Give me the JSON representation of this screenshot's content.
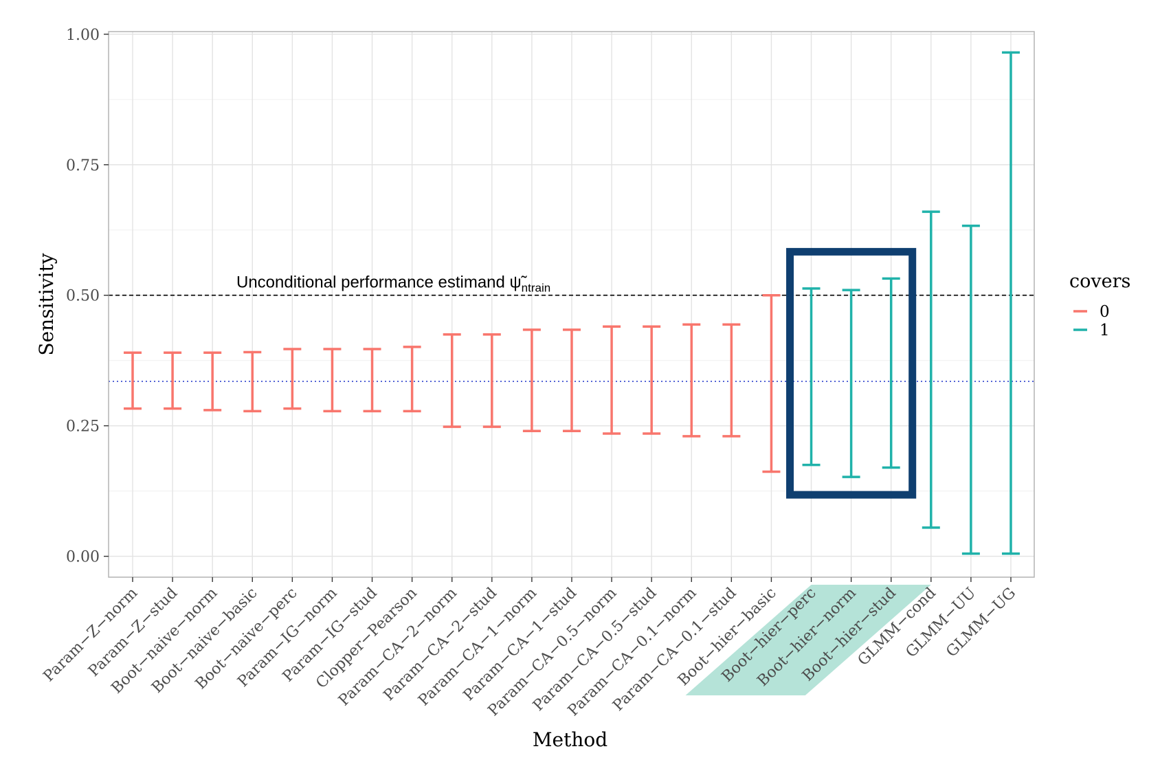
{
  "chart_data": {
    "type": "errorbar",
    "xlabel": "Method",
    "ylabel": "Sensitivity",
    "ylim": [
      -0.04,
      1.005
    ],
    "yticks": [
      0.0,
      0.25,
      0.5,
      0.75,
      1.0
    ],
    "ytick_labels": [
      "0.00",
      "0.25",
      "0.50",
      "0.75",
      "1.00"
    ],
    "grid": true,
    "legend": {
      "title": "covers",
      "position": "right",
      "entries": [
        {
          "label": "0",
          "color": "#F8766D"
        },
        {
          "label": "1",
          "color": "#20B2AA"
        }
      ]
    },
    "categories": [
      "Param−Z−norm",
      "Param−Z−stud",
      "Boot−naive−norm",
      "Boot−naive−basic",
      "Boot−naive−perc",
      "Param−IG−norm",
      "Param−IG−stud",
      "Clopper−Pearson",
      "Param−CA−2−norm",
      "Param−CA−2−stud",
      "Param−CA−1−norm",
      "Param−CA−1−stud",
      "Param−CA−0.5−norm",
      "Param−CA−0.5−stud",
      "Param−CA−0.1−norm",
      "Param−CA−0.1−stud",
      "Boot−hier−basic",
      "Boot−hier−perc",
      "Boot−hier−norm",
      "Boot−hier−stud",
      "GLMM−cond",
      "GLMM−UU",
      "GLMM−UG"
    ],
    "lower": [
      0.283,
      0.283,
      0.28,
      0.278,
      0.283,
      0.278,
      0.278,
      0.278,
      0.248,
      0.248,
      0.24,
      0.24,
      0.235,
      0.235,
      0.23,
      0.23,
      0.162,
      0.175,
      0.152,
      0.17,
      0.055,
      0.005,
      0.005
    ],
    "upper": [
      0.39,
      0.39,
      0.39,
      0.391,
      0.397,
      0.397,
      0.397,
      0.401,
      0.425,
      0.425,
      0.434,
      0.434,
      0.44,
      0.44,
      0.444,
      0.444,
      0.5,
      0.513,
      0.51,
      0.532,
      0.66,
      0.633,
      0.965
    ],
    "covers": [
      0,
      0,
      0,
      0,
      0,
      0,
      0,
      0,
      0,
      0,
      0,
      0,
      0,
      0,
      0,
      0,
      0,
      1,
      1,
      1,
      1,
      1,
      1
    ],
    "reference_lines": [
      {
        "y": 0.5,
        "style": "dashed",
        "color": "#000000",
        "label": "Unconditional performance estimand ψ̃",
        "label_subscript": "ntrain"
      },
      {
        "y": 0.335,
        "style": "dotted",
        "color": "#4a5bd4"
      }
    ],
    "highlight_box": {
      "categories": [
        "Boot−hier−perc",
        "Boot−hier−norm",
        "Boot−hier−stud"
      ],
      "color": "#0f3f70"
    },
    "highlight_labels_color": "#b5e3d8"
  }
}
